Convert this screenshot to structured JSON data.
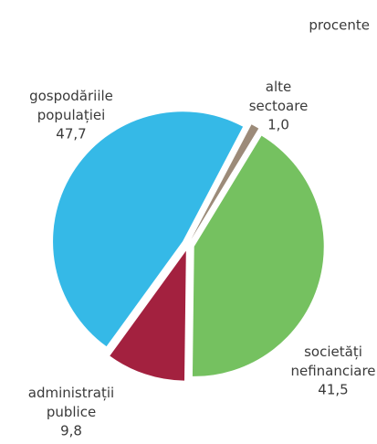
{
  "chart_data": {
    "type": "pie",
    "subtitle": "procente",
    "categories": [
      "gospodăriile populației",
      "alte sectoare",
      "societăți nefinanciare",
      "administrații publice"
    ],
    "values": [
      47.7,
      1.0,
      41.5,
      9.8
    ],
    "value_labels": [
      "47,7",
      "1,0",
      "41,5",
      "9,8"
    ],
    "colors": [
      "#35b9e7",
      "#9c8b79",
      "#75c160",
      "#a3213f"
    ]
  }
}
